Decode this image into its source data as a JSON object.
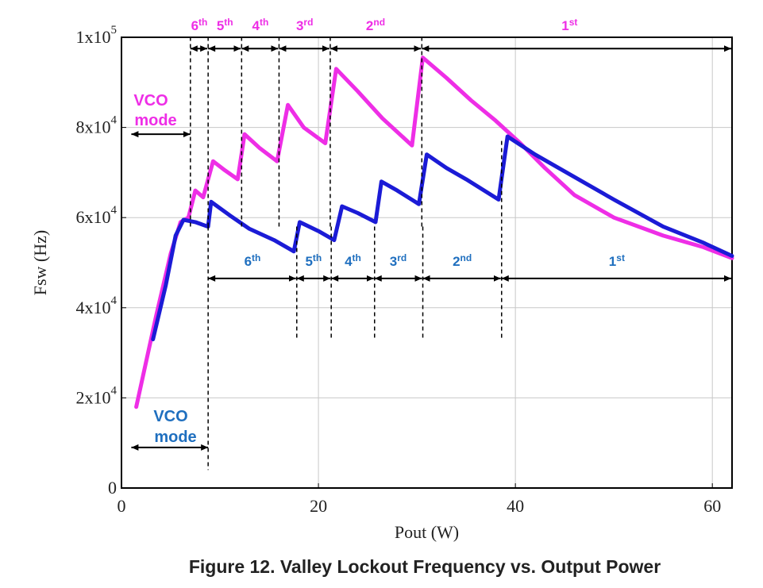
{
  "caption": "Figure 12. Valley Lockout Frequency vs. Output Power",
  "colors": {
    "magenta": "#ee2ee6",
    "blue": "#1b1bd6",
    "label_blue": "#1f6fbf",
    "grid": "#c8c8c8"
  },
  "chart_data": {
    "type": "line",
    "xlabel": "Pout (W)",
    "ylabel": "Fsw (Hz)",
    "xlim": [
      0,
      62
    ],
    "ylim": [
      0,
      100000
    ],
    "x_ticks": [
      0,
      20,
      40,
      60
    ],
    "x_tick_labels": [
      "0",
      "20",
      "40",
      "60"
    ],
    "y_ticks": [
      0,
      20000,
      40000,
      60000,
      80000,
      100000
    ],
    "y_tick_labels": [
      {
        "base": "0",
        "exp": ""
      },
      {
        "base": "2x10",
        "exp": "4"
      },
      {
        "base": "4x10",
        "exp": "4"
      },
      {
        "base": "6x10",
        "exp": "4"
      },
      {
        "base": "8x10",
        "exp": "4"
      },
      {
        "base": "1x10",
        "exp": "5"
      }
    ],
    "grid": true,
    "series": [
      {
        "color": "#ee2ee6",
        "x": [
          1.5,
          3.5,
          5.0,
          6.0,
          6.8,
          7.5,
          8.3,
          9.3,
          10.5,
          11.8,
          12.5,
          14,
          15.8,
          16.9,
          18.5,
          20.7,
          21.8,
          24,
          26.5,
          29.5,
          30.6,
          33,
          35.5,
          38,
          40.5,
          43,
          46,
          50,
          55,
          59,
          62
        ],
        "y": [
          18000,
          38000,
          52000,
          59000,
          60000,
          66000,
          64500,
          72500,
          70500,
          68500,
          78500,
          75500,
          72500,
          85000,
          80000,
          76500,
          93000,
          88000,
          82000,
          76000,
          95500,
          91000,
          86000,
          81500,
          76500,
          71000,
          65000,
          60000,
          56000,
          53500,
          51000
        ]
      },
      {
        "color": "#1b1bd6",
        "x": [
          3.2,
          4.5,
          5.5,
          6.3,
          7.5,
          8.8,
          9.1,
          11,
          13,
          15.5,
          17.5,
          18.1,
          20,
          21.6,
          22.4,
          24,
          25.8,
          26.4,
          28,
          30.2,
          31,
          33,
          35,
          38.3,
          39.2,
          42,
          46,
          50,
          55,
          59,
          62
        ],
        "y": [
          33000,
          45000,
          56000,
          59500,
          59000,
          58000,
          63500,
          60500,
          57500,
          55000,
          52500,
          59000,
          57000,
          55000,
          62500,
          61000,
          59000,
          68000,
          66000,
          63000,
          74000,
          71000,
          68500,
          64000,
          78000,
          74000,
          69000,
          64000,
          58000,
          54500,
          51500
        ]
      }
    ]
  },
  "annotations": {
    "top": {
      "color": "#ee2ee6",
      "dividers_x": [
        7.0,
        8.8,
        12.2,
        16.0,
        21.2,
        30.5
      ],
      "divider_ylim": [
        58000,
        100000
      ],
      "arrow_y": 97500,
      "arrow_end_x": 62,
      "labels": [
        {
          "base": "6",
          "sup": "th",
          "x": 7.9
        },
        {
          "base": "5",
          "sup": "th",
          "x": 10.5
        },
        {
          "base": "4",
          "sup": "th",
          "x": 14.1
        },
        {
          "base": "3",
          "sup": "rd",
          "x": 18.6
        },
        {
          "base": "2",
          "sup": "nd",
          "x": 25.8
        },
        {
          "base": "1",
          "sup": "st",
          "x": 45.5
        }
      ],
      "vco_label_line1": "VCO",
      "vco_label_line2": "mode",
      "vco_arrow_x": [
        1.0,
        7.0
      ],
      "vco_arrow_y": 78500
    },
    "bottom": {
      "color": "#1f6fbf",
      "dividers_x": [
        8.8,
        17.8,
        21.3,
        25.7,
        30.6,
        38.6
      ],
      "divider_ylim": [
        4000,
        63000
      ],
      "extra_dividers_low": [
        33000,
        33000,
        33000,
        33000,
        33000,
        33000
      ],
      "arrow_y": 46500,
      "arrow_end_x": 62,
      "labels": [
        {
          "base": "6",
          "sup": "th",
          "x": 13.3
        },
        {
          "base": "5",
          "sup": "th",
          "x": 19.5
        },
        {
          "base": "4",
          "sup": "th",
          "x": 23.5
        },
        {
          "base": "3",
          "sup": "rd",
          "x": 28.1
        },
        {
          "base": "2",
          "sup": "nd",
          "x": 34.6
        },
        {
          "base": "1",
          "sup": "st",
          "x": 50.3
        }
      ],
      "vco_label_line1": "VCO",
      "vco_label_line2": "mode",
      "vco_arrow_x": [
        1.0,
        8.8
      ],
      "vco_arrow_y": 9000
    }
  }
}
